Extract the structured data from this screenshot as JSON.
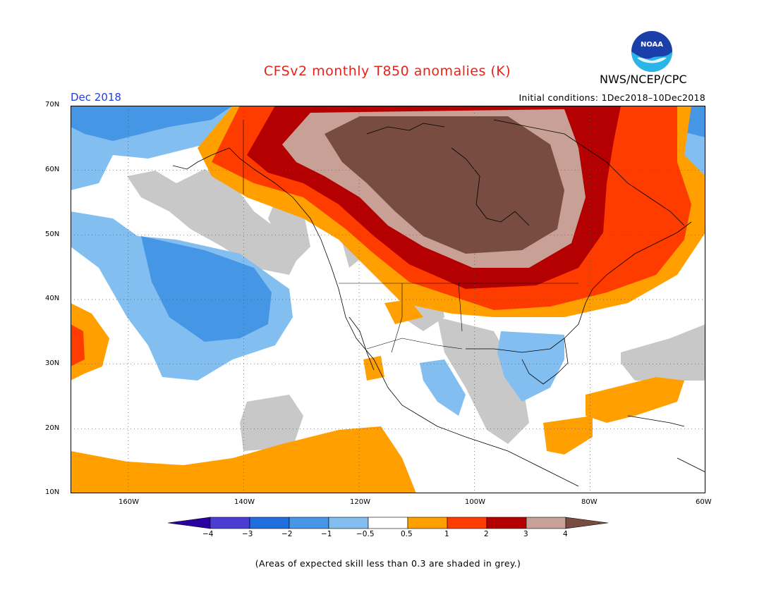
{
  "title": "CFSv2 monthly T850 anomalies (K)",
  "agency": "NWS/NCEP/CPC",
  "logo_text": "NOAA",
  "month_label": "Dec 2018",
  "initial_conditions": "Initial conditions: 1Dec2018–10Dec2018",
  "footnote": "(Areas of expected skill less than 0.3 are shaded in grey.)",
  "map": {
    "extent": {
      "lon": [
        -170,
        -60
      ],
      "lat": [
        10,
        70
      ]
    },
    "lat_ticks": [
      "10N",
      "20N",
      "30N",
      "40N",
      "50N",
      "60N",
      "70N"
    ],
    "lon_ticks": [
      "160W",
      "140W",
      "120W",
      "100W",
      "80W",
      "60W"
    ],
    "colors": {
      "grey_low_skill": "#c8c8c8",
      "lt_blue": "#82bef0",
      "mid_blue": "#4696e6",
      "blue": "#1e6edc",
      "orange": "#ffa000",
      "red_orange": "#ff3c00",
      "dark_red": "#b40000",
      "tan": "#c8a096",
      "brown": "#784c41"
    }
  },
  "colorbar": {
    "labels": [
      "−4",
      "−3",
      "−2",
      "−1",
      "−0.5",
      "0.5",
      "1",
      "2",
      "3",
      "4"
    ],
    "colors": [
      "#2a00a0",
      "#4b3cd2",
      "#1e6edc",
      "#4696e6",
      "#82bef0",
      "#ffffff",
      "#ffa000",
      "#ff3c00",
      "#b40000",
      "#c8a096",
      "#784c41"
    ]
  }
}
